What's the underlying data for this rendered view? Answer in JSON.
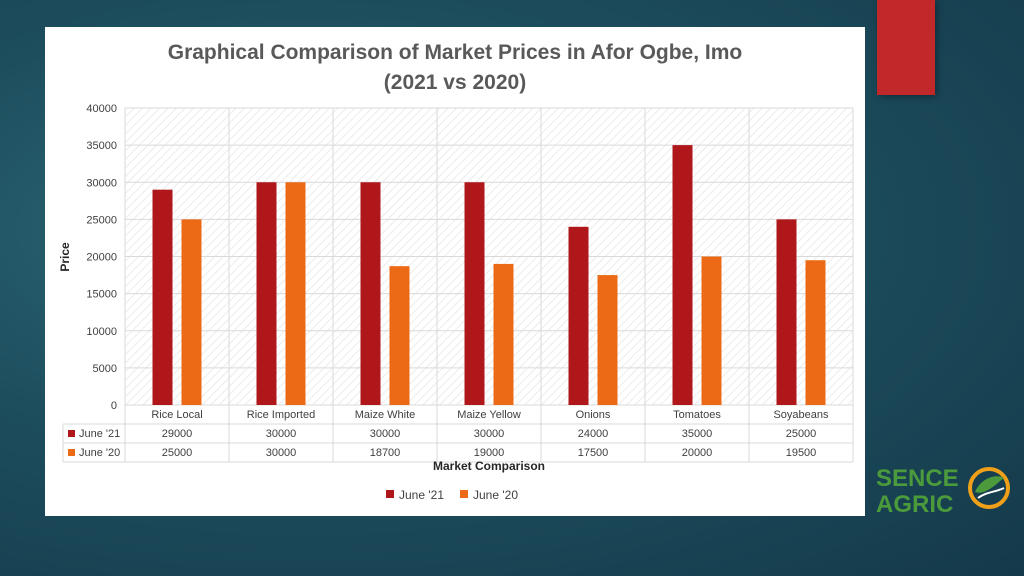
{
  "colors": {
    "june21": "#b0171b",
    "june20": "#ec6a16",
    "logo_green": "#4b9a3c",
    "logo_orange": "#f0a018",
    "accent_tab": "#c0282a"
  },
  "logo": {
    "line1": "SENCE",
    "line2": "AGRIC",
    "icon": "leaf-in-circle-icon"
  },
  "chart_data": {
    "type": "bar",
    "title_line1": "Graphical Comparison of Market Prices in Afor Ogbe, Imo",
    "title_line2": "(2021 vs 2020)",
    "xlabel": "Market Comparison",
    "ylabel": "Price",
    "ylim": [
      0,
      40000
    ],
    "yticks": [
      0,
      5000,
      10000,
      15000,
      20000,
      25000,
      30000,
      35000,
      40000
    ],
    "grid": true,
    "legend_position": "bottom",
    "categories": [
      "Rice Local",
      "Rice Imported",
      "Maize White",
      "Maize Yellow",
      "Onions",
      "Tomatoes",
      "Soyabeans"
    ],
    "series": [
      {
        "name": "June '21",
        "values": [
          29000,
          30000,
          30000,
          30000,
          24000,
          35000,
          25000
        ]
      },
      {
        "name": "June '20",
        "values": [
          25000,
          30000,
          18700,
          19000,
          17500,
          20000,
          19500
        ]
      }
    ]
  }
}
